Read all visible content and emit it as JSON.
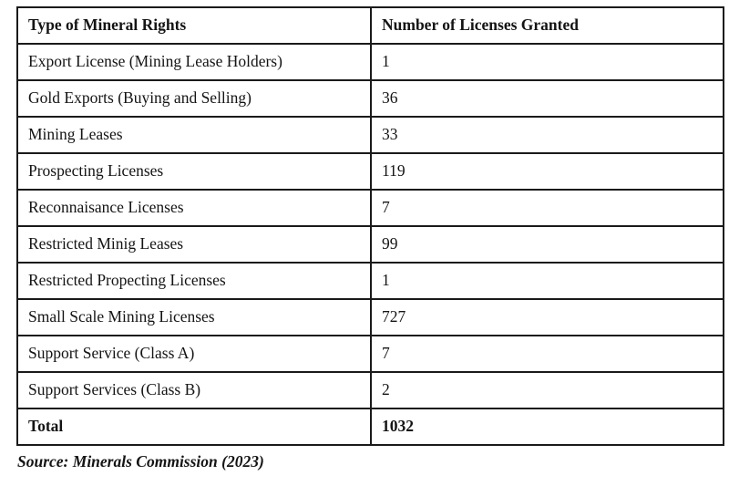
{
  "table": {
    "headers": [
      "Type of Mineral Rights",
      "Number of Licenses Granted"
    ],
    "rows": [
      {
        "type": "Export License (Mining Lease Holders)",
        "count": "1"
      },
      {
        "type": "Gold Exports (Buying and Selling)",
        "count": "36"
      },
      {
        "type": "Mining Leases",
        "count": "33"
      },
      {
        "type": "Prospecting Licenses",
        "count": "119"
      },
      {
        "type": "Reconnaisance Licenses",
        "count": "7"
      },
      {
        "type": "Restricted Minig Leases",
        "count": "99"
      },
      {
        "type": "Restricted Propecting Licenses",
        "count": "1"
      },
      {
        "type": "Small Scale Mining Licenses",
        "count": "727"
      },
      {
        "type": "Support Service (Class A)",
        "count": "7"
      },
      {
        "type": "Support Services (Class B)",
        "count": "2"
      }
    ],
    "total": {
      "label": "Total",
      "value": "1032"
    }
  },
  "source_note": "Source: Minerals Commission (2023)",
  "chart_data": {
    "type": "table",
    "title": "",
    "columns": [
      "Type of Mineral Rights",
      "Number of Licenses Granted"
    ],
    "categories": [
      "Export License (Mining Lease Holders)",
      "Gold Exports (Buying and Selling)",
      "Mining Leases",
      "Prospecting Licenses",
      "Reconnaisance Licenses",
      "Restricted Minig Leases",
      "Restricted Propecting Licenses",
      "Small Scale Mining Licenses",
      "Support Service (Class A)",
      "Support Services (Class B)"
    ],
    "values": [
      1,
      36,
      33,
      119,
      7,
      99,
      1,
      727,
      7,
      2
    ],
    "total": 1032,
    "source": "Source: Minerals Commission (2023)"
  },
  "colors": {
    "border": "#1a1a1a",
    "text": "#141414",
    "background": "#ffffff"
  }
}
